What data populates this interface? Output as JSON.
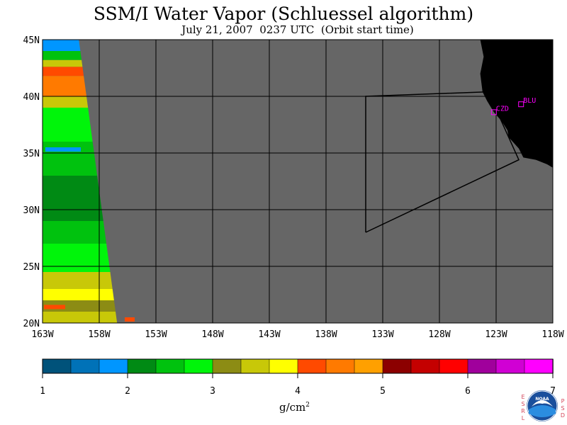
{
  "title": "SSM/I Water Vapor (Schluessel algorithm)",
  "subtitle": "July 21, 2007  0237 UTC  (Orbit start time)",
  "map": {
    "lon_labels": [
      "163W",
      "158W",
      "153W",
      "148W",
      "143W",
      "138W",
      "133W",
      "128W",
      "123W",
      "118W"
    ],
    "lat_labels": [
      "45N",
      "40N",
      "35N",
      "30N",
      "25N",
      "20N"
    ],
    "lon_range": [
      -163,
      -118
    ],
    "lat_range": [
      20,
      45
    ],
    "background_color": "#666666",
    "land_color": "#000000",
    "grid_color": "#000000",
    "stations": [
      {
        "label": "CZD",
        "lon": -123.2,
        "lat": 38.6
      },
      {
        "label": "BLU",
        "lon": -120.8,
        "lat": 39.3
      }
    ],
    "station_color": "#ff00ff"
  },
  "colorbar": {
    "colors": [
      "#00527a",
      "#0072b8",
      "#0096ff",
      "#008a14",
      "#00c20e",
      "#00f50a",
      "#8c8c14",
      "#c8c808",
      "#ffff00",
      "#ff4a00",
      "#ff7a00",
      "#ffa000",
      "#8c0000",
      "#c40000",
      "#ff0000",
      "#a0009c",
      "#d000d4",
      "#ff00ff"
    ],
    "tick_labels": [
      "1",
      "2",
      "3",
      "4",
      "5",
      "6",
      "7"
    ],
    "units_main": "g/cm",
    "units_exp": "2"
  },
  "logo": {
    "left_letters": "ESRL",
    "right_letters": "PSD",
    "badge_text": "NOAA"
  }
}
